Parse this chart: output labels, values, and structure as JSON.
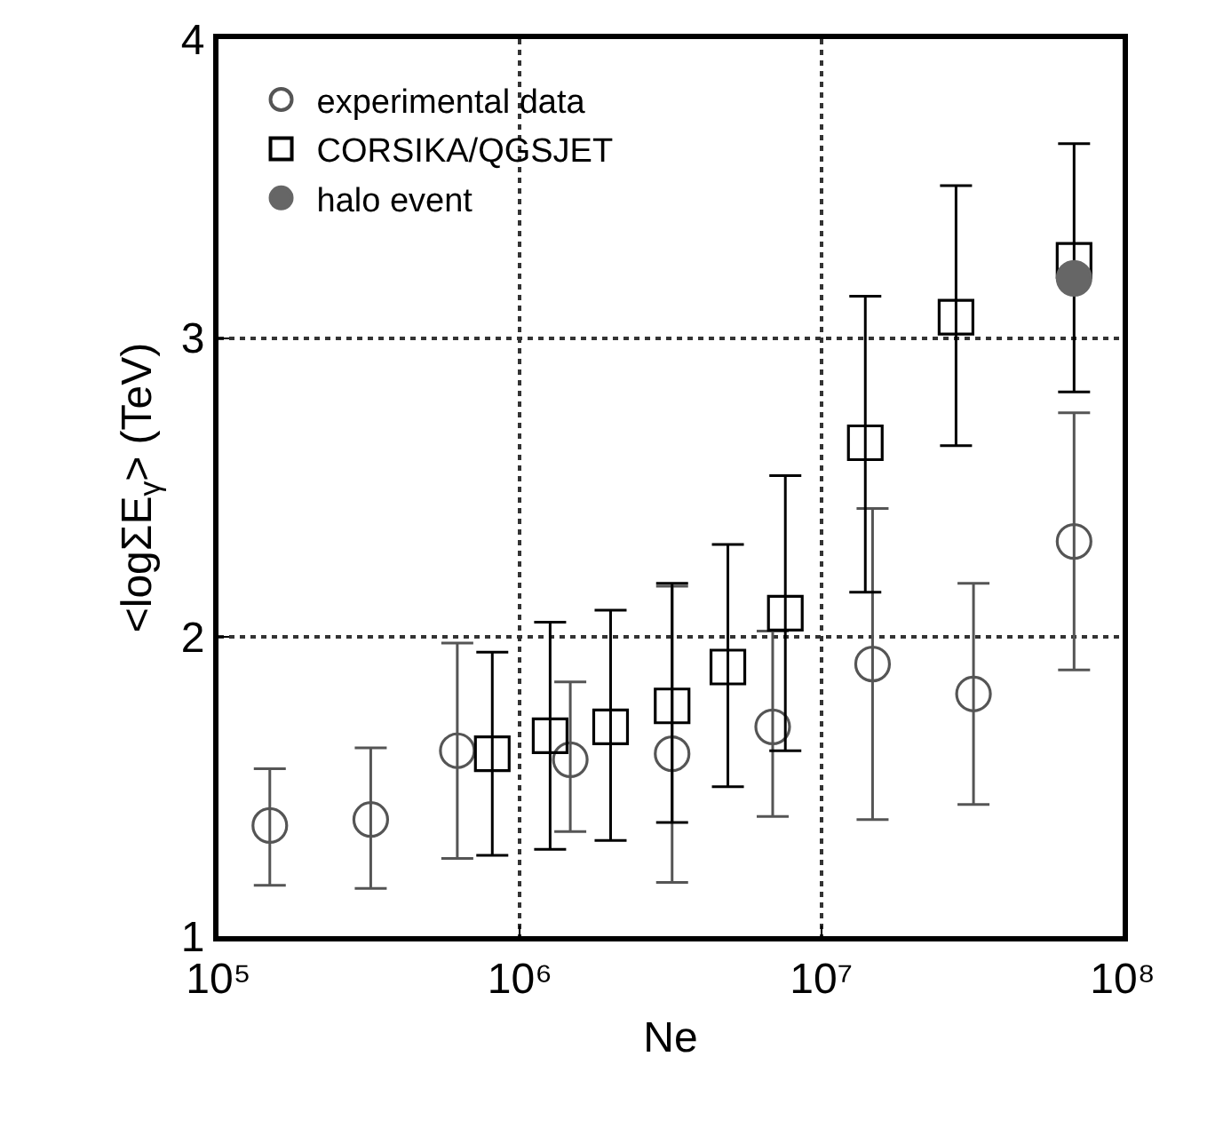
{
  "chart_data": {
    "type": "scatter",
    "xlabel": "Ne",
    "ylabel": "<logΣE$_{γ}$> (TeV)",
    "log": "x",
    "grid": true,
    "line_style": "dotted",
    "legend": "top left",
    "xlim": [
      100000,
      100000000
    ],
    "xticks": [
      {
        "value": 100000,
        "label": "10⁵"
      },
      {
        "value": 1000000,
        "label": "10⁶"
      },
      {
        "value": 10000000,
        "label": "10⁷"
      },
      {
        "value": 100000000,
        "label": "10⁸"
      }
    ],
    "ylim": [
      1,
      4
    ],
    "yticks": [
      1,
      2,
      3,
      4
    ],
    "series": [
      {
        "name": "experimental data",
        "color": "#555555",
        "marker": "circle",
        "x": [
          148000,
          320000,
          620000,
          1470000,
          3200000,
          6900000,
          14800000,
          32000000,
          69000000
        ],
        "values": [
          1.37,
          1.39,
          1.62,
          1.59,
          1.61,
          1.7,
          1.91,
          1.81,
          2.32
        ],
        "errors": [
          [
            1.17,
            1.56
          ],
          [
            1.16,
            1.63
          ],
          [
            1.26,
            1.98
          ],
          [
            1.35,
            1.85
          ],
          [
            1.18,
            2.17
          ],
          [
            1.4,
            2.02
          ],
          [
            1.39,
            2.43
          ],
          [
            1.44,
            2.18
          ],
          [
            1.89,
            2.75
          ]
        ]
      },
      {
        "name": "CORSIKA/QGSJET",
        "color": "#000000",
        "marker": "square",
        "x": [
          810000,
          1260000,
          2000000,
          3200000,
          4900000,
          7600000,
          14000000,
          28000000,
          69000000
        ],
        "values": [
          1.61,
          1.67,
          1.7,
          1.77,
          1.9,
          2.08,
          2.65,
          3.07,
          3.26
        ],
        "errors": [
          [
            1.27,
            1.95
          ],
          [
            1.29,
            2.05
          ],
          [
            1.32,
            2.09
          ],
          [
            1.38,
            2.18
          ],
          [
            1.5,
            2.31
          ],
          [
            1.62,
            2.54
          ],
          [
            2.15,
            3.14
          ],
          [
            2.64,
            3.51
          ],
          [
            2.82,
            3.65
          ]
        ]
      },
      {
        "name": "halo event",
        "color": "#666666",
        "marker": "circle",
        "x": [
          69000000
        ],
        "values": [
          3.2
        ]
      }
    ]
  }
}
